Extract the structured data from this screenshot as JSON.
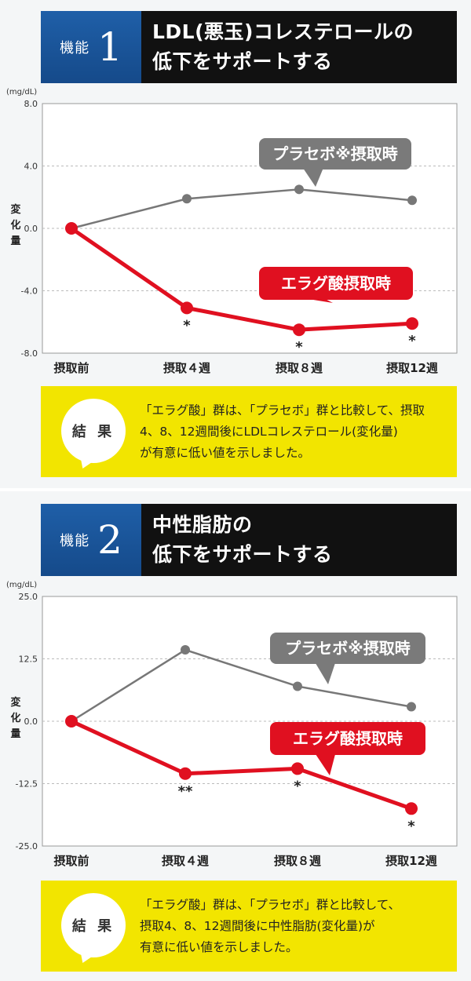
{
  "panels": [
    {
      "tag_label": "機能",
      "tag_number": "1",
      "title_lines": [
        "LDL(悪玉)コレステロールの",
        "低下をサポートする"
      ],
      "result_label": "結 果",
      "result_lines": [
        "「エラグ酸」群は、「プラセボ」群と比較して、摂取",
        "4、8、12週間後にLDLコレステロール(変化量)",
        "が有意に低い値を示しました。"
      ]
    },
    {
      "tag_label": "機能",
      "tag_number": "2",
      "title_lines": [
        "中性脂肪の",
        "低下をサポートする"
      ],
      "result_label": "結 果",
      "result_lines": [
        "「エラグ酸」群は、「プラセボ」群と比較して、",
        "摂取4、8、12週間後に中性脂肪(変化量)が",
        "有意に低い値を示しました。"
      ]
    }
  ],
  "chart_data": [
    {
      "type": "line",
      "unit": "(mg/dL)",
      "ylabel": "変化量",
      "categories": [
        "摂取前",
        "摂取４週",
        "摂取８週",
        "摂取12週"
      ],
      "ylim": [
        -8.0,
        8.0
      ],
      "yticks": [
        "8.0",
        "4.0",
        "0.0",
        "-4.0",
        "-8.0"
      ],
      "ytick_values": [
        8.0,
        4.0,
        0.0,
        -4.0,
        -8.0
      ],
      "grid": true,
      "series": [
        {
          "name": "プラセボ※摂取時",
          "values": [
            0.0,
            1.9,
            2.5,
            1.8
          ],
          "color": "#777777",
          "markers": [
            "",
            "",
            "",
            ""
          ]
        },
        {
          "name": "エラグ酸摂取時",
          "values": [
            0.0,
            -5.1,
            -6.5,
            -6.1
          ],
          "color": "#e01020",
          "markers": [
            "",
            "*",
            "*",
            "*"
          ]
        }
      ]
    },
    {
      "type": "line",
      "unit": "(mg/dL)",
      "ylabel": "変化量",
      "categories": [
        "摂取前",
        "摂取４週",
        "摂取８週",
        "摂取12週"
      ],
      "ylim": [
        -25.0,
        25.0
      ],
      "yticks": [
        "25.0",
        "12.5",
        "0.0",
        "-12.5",
        "-25.0"
      ],
      "ytick_values": [
        25.0,
        12.5,
        0.0,
        -12.5,
        -25.0
      ],
      "grid": true,
      "series": [
        {
          "name": "プラセボ※摂取時",
          "values": [
            0.0,
            14.3,
            7.0,
            2.9
          ],
          "color": "#777777",
          "markers": [
            "",
            "",
            "",
            ""
          ]
        },
        {
          "name": "エラグ酸摂取時",
          "values": [
            0.0,
            -10.5,
            -9.5,
            -17.5
          ],
          "color": "#e01020",
          "markers": [
            "",
            "**",
            "*",
            "*"
          ]
        }
      ]
    }
  ]
}
